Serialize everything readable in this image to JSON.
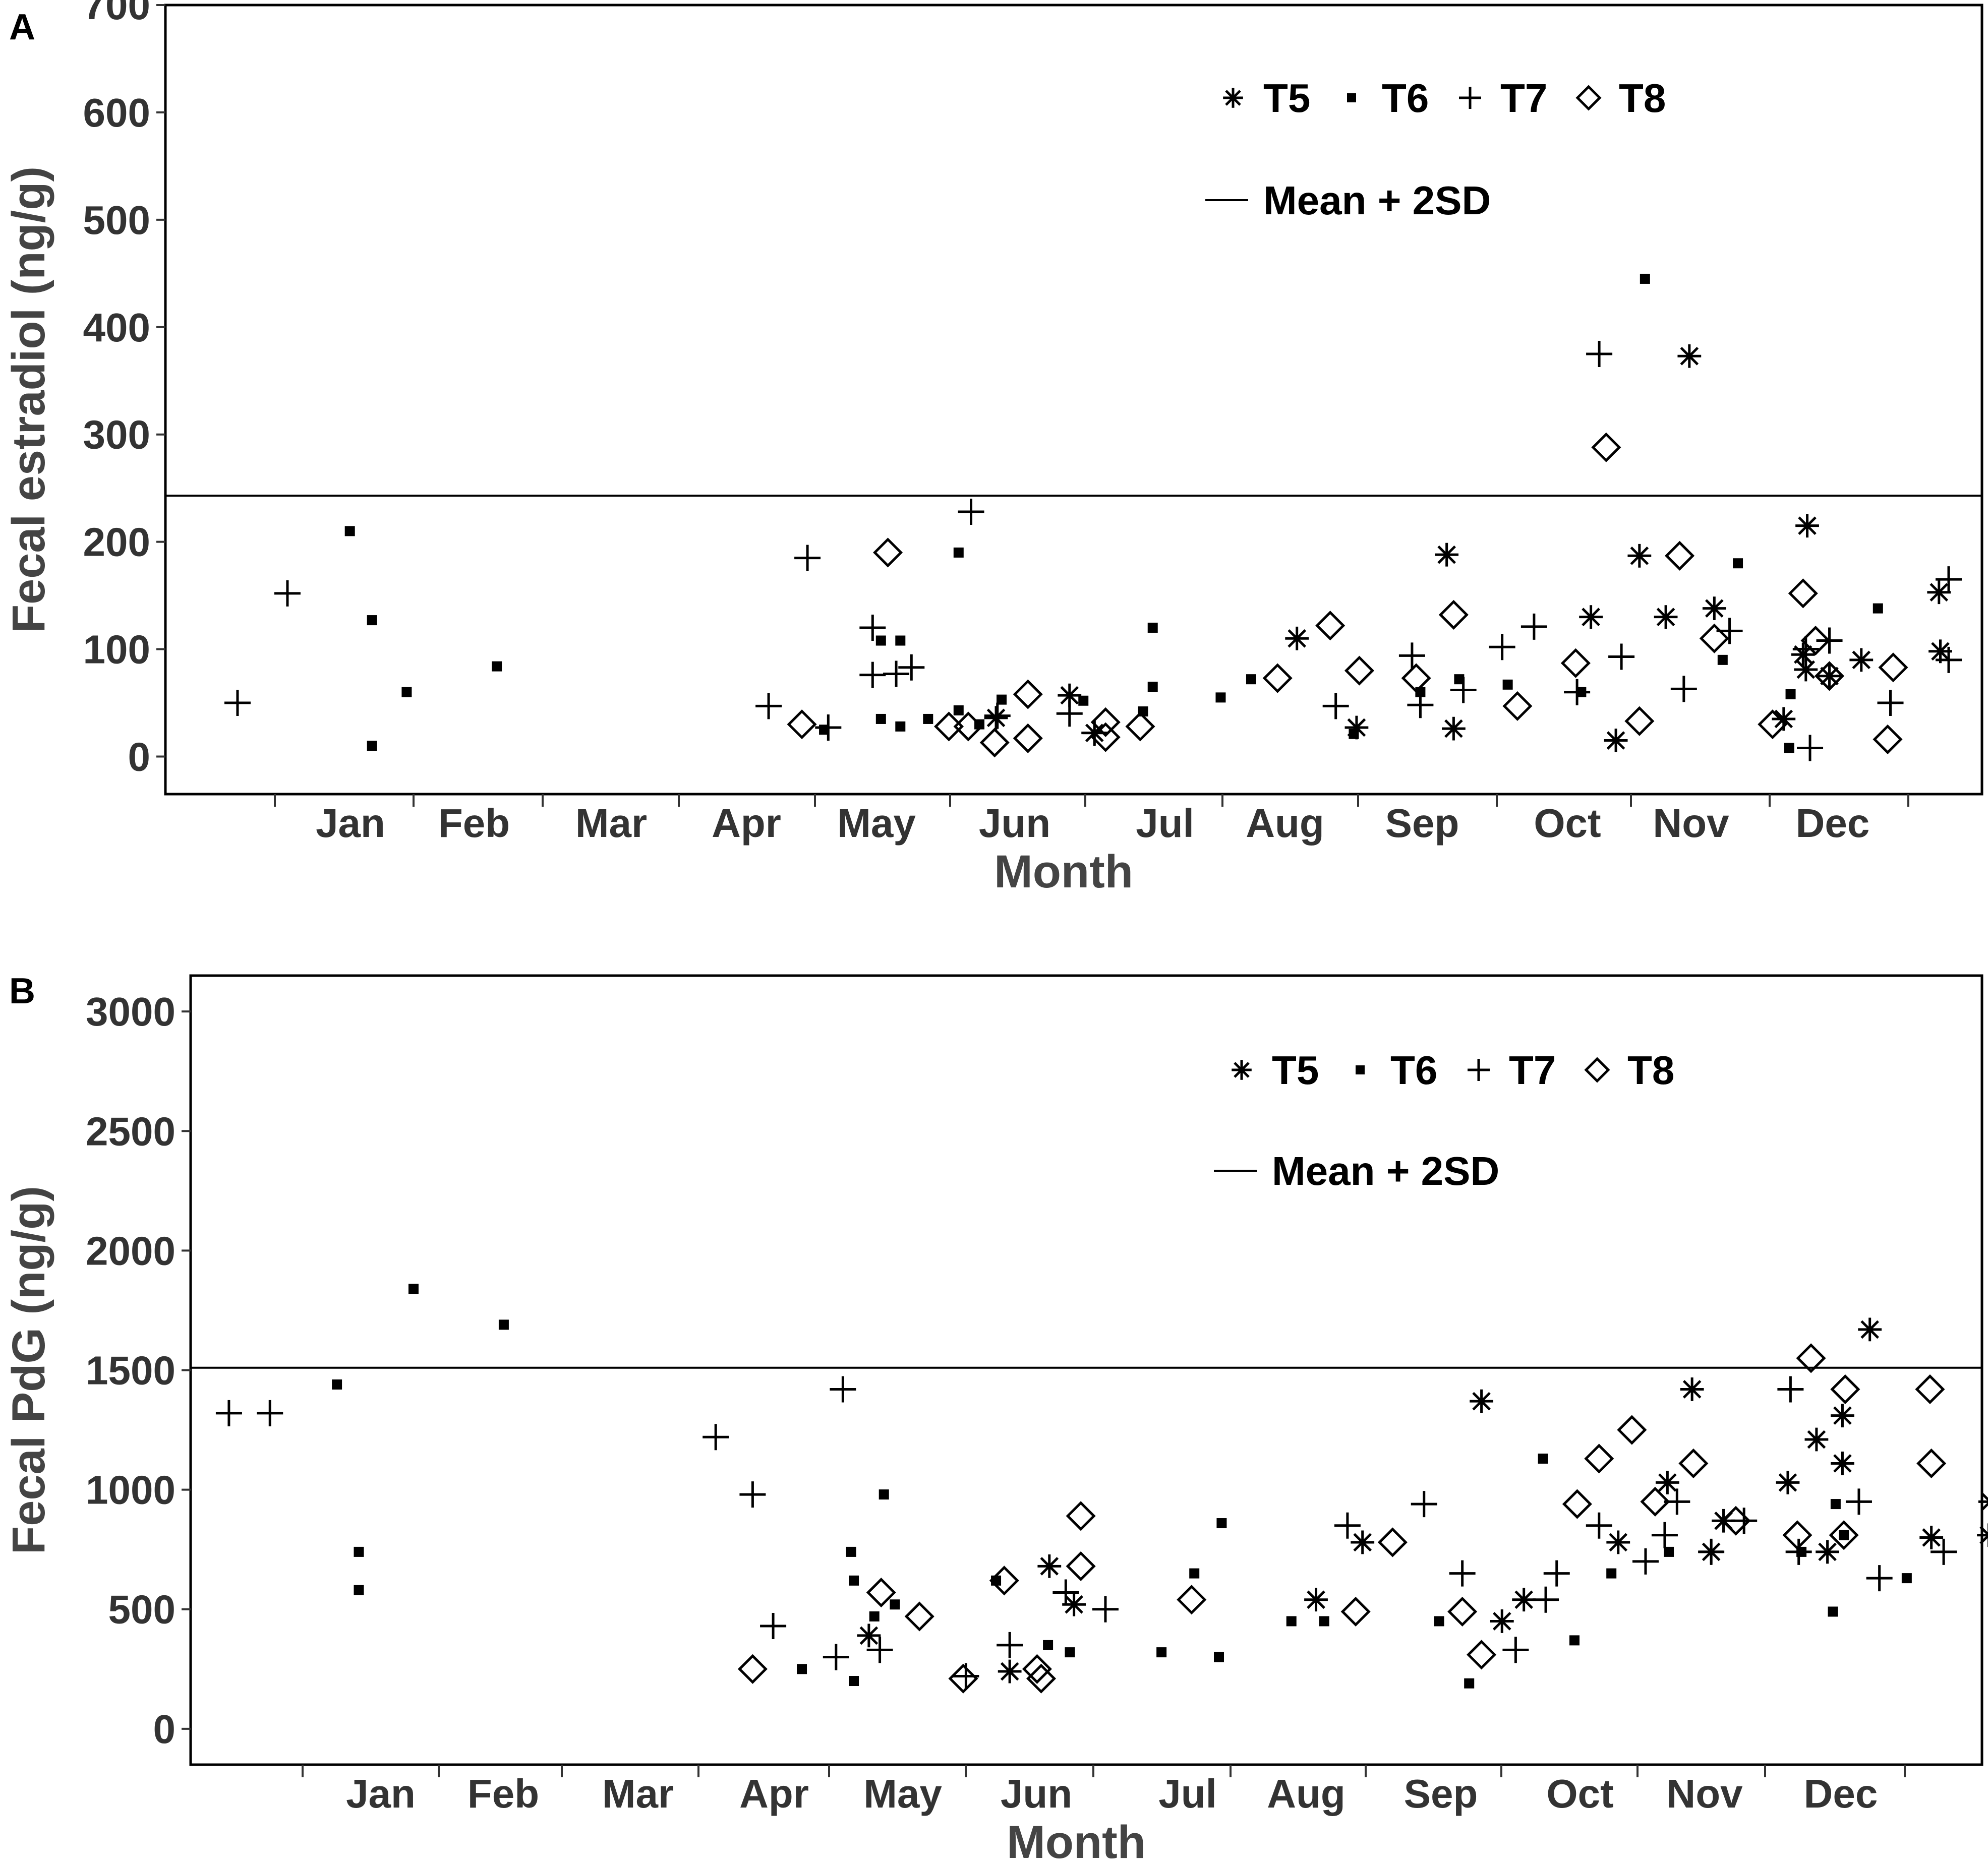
{
  "chart_data": [
    {
      "panel": "A",
      "type": "scatter",
      "ylabel": "Fecal estradiol (ng/g)",
      "xlabel": "Month",
      "ylim": [
        -35,
        700
      ],
      "yticks": [
        0,
        100,
        200,
        300,
        400,
        500,
        600,
        700
      ],
      "categories": [
        "Jan",
        "Feb",
        "Mar",
        "Apr",
        "May",
        "Jun",
        "Jul",
        "Aug",
        "Sep",
        "Oct",
        "Nov",
        "Dec"
      ],
      "xlim": [
        0.2,
        13.3
      ],
      "grid": false,
      "legend_position": "top-right",
      "legend": [
        "T5",
        "T6",
        "T7",
        "T8"
      ],
      "legend_line": "Mean + 2SD",
      "reference_line": 243,
      "series": [
        {
          "name": "T5",
          "marker": "asterisk",
          "points": [
            [
              6.19,
              36
            ],
            [
              6.72,
              57
            ],
            [
              6.9,
              22
            ],
            [
              8.36,
              110
            ],
            [
              8.79,
              27
            ],
            [
              9.44,
              188
            ],
            [
              9.49,
              26
            ],
            [
              10.48,
              130
            ],
            [
              10.66,
              15
            ],
            [
              10.83,
              187
            ],
            [
              11.02,
              130
            ],
            [
              11.19,
              373
            ],
            [
              11.37,
              138
            ],
            [
              11.87,
              35
            ],
            [
              12.01,
              95
            ],
            [
              12.03,
              81
            ],
            [
              12.04,
              215
            ],
            [
              12.2,
              75
            ],
            [
              12.43,
              90
            ],
            [
              12.99,
              153
            ],
            [
              13.0,
              98
            ]
          ]
        },
        {
          "name": "T6",
          "marker": "dot",
          "points": [
            [
              1.53,
              210
            ],
            [
              1.69,
              127
            ],
            [
              1.69,
              10
            ],
            [
              1.94,
              60
            ],
            [
              2.59,
              84
            ],
            [
              4.95,
              25
            ],
            [
              5.36,
              35
            ],
            [
              5.36,
              108
            ],
            [
              5.5,
              28
            ],
            [
              5.5,
              108
            ],
            [
              5.7,
              35
            ],
            [
              5.92,
              43
            ],
            [
              5.92,
              190
            ],
            [
              6.07,
              30
            ],
            [
              6.23,
              53
            ],
            [
              6.82,
              52
            ],
            [
              7.25,
              42
            ],
            [
              7.32,
              120
            ],
            [
              7.32,
              65
            ],
            [
              7.81,
              55
            ],
            [
              8.03,
              72
            ],
            [
              8.77,
              21
            ],
            [
              9.25,
              60
            ],
            [
              9.53,
              72
            ],
            [
              9.88,
              67
            ],
            [
              10.41,
              60
            ],
            [
              10.87,
              445
            ],
            [
              11.54,
              180
            ],
            [
              11.43,
              90
            ],
            [
              11.92,
              58
            ],
            [
              11.91,
              8
            ],
            [
              12.55,
              138
            ]
          ]
        },
        {
          "name": "T7",
          "marker": "plus",
          "points": [
            [
              0.72,
              50
            ],
            [
              1.08,
              152
            ],
            [
              4.55,
              47
            ],
            [
              4.83,
              185
            ],
            [
              4.98,
              27
            ],
            [
              5.3,
              120
            ],
            [
              5.3,
              76
            ],
            [
              5.47,
              77
            ],
            [
              5.58,
              83
            ],
            [
              6.01,
              228
            ],
            [
              6.2,
              38
            ],
            [
              6.72,
              40
            ],
            [
              6.9,
              22
            ],
            [
              8.64,
              47
            ],
            [
              9.19,
              94
            ],
            [
              9.25,
              48
            ],
            [
              9.56,
              62
            ],
            [
              9.84,
              102
            ],
            [
              10.07,
              121
            ],
            [
              10.38,
              60
            ],
            [
              10.54,
              375
            ],
            [
              10.7,
              93
            ],
            [
              11.15,
              63
            ],
            [
              11.48,
              117
            ],
            [
              12.03,
              100
            ],
            [
              12.06,
              8
            ],
            [
              12.2,
              108
            ],
            [
              12.64,
              50
            ],
            [
              13.06,
              165
            ],
            [
              13.06,
              90
            ]
          ]
        },
        {
          "name": "T8",
          "marker": "diamond",
          "points": [
            [
              4.79,
              30
            ],
            [
              5.41,
              190
            ],
            [
              5.85,
              28
            ],
            [
              5.99,
              28
            ],
            [
              6.18,
              13
            ],
            [
              6.42,
              58
            ],
            [
              6.42,
              17
            ],
            [
              6.98,
              32
            ],
            [
              6.98,
              18
            ],
            [
              7.23,
              28
            ],
            [
              8.22,
              73
            ],
            [
              8.6,
              122
            ],
            [
              8.81,
              80
            ],
            [
              9.22,
              73
            ],
            [
              9.49,
              132
            ],
            [
              9.95,
              47
            ],
            [
              10.37,
              87
            ],
            [
              10.59,
              288
            ],
            [
              10.83,
              33
            ],
            [
              11.12,
              187
            ],
            [
              11.37,
              110
            ],
            [
              11.79,
              30
            ],
            [
              12.01,
              152
            ],
            [
              12.1,
              108
            ],
            [
              12.2,
              75
            ],
            [
              12.62,
              16
            ],
            [
              12.66,
              83
            ]
          ]
        }
      ]
    },
    {
      "panel": "B",
      "type": "scatter",
      "ylabel": "Fecal PdG (ng/g)",
      "xlabel": "Month",
      "ylim": [
        -150,
        3150
      ],
      "yticks": [
        0,
        500,
        1000,
        1500,
        2000,
        2500,
        3000
      ],
      "categories": [
        "Jan",
        "Feb",
        "Mar",
        "Apr",
        "May",
        "Jun",
        "Jul",
        "Aug",
        "Sep",
        "Oct",
        "Nov",
        "Dec"
      ],
      "xlim": [
        0.2,
        13.3
      ],
      "grid": false,
      "legend_position": "top-right",
      "legend": [
        "T5",
        "T6",
        "T7",
        "T8"
      ],
      "legend_line": "Mean + 2SD",
      "reference_line": 1510,
      "series": [
        {
          "name": "T5",
          "marker": "asterisk",
          "points": [
            [
              5.16,
              390
            ],
            [
              6.19,
              240
            ],
            [
              6.48,
              680
            ],
            [
              6.66,
              520
            ],
            [
              8.43,
              540
            ],
            [
              8.77,
              780
            ],
            [
              9.64,
              1370
            ],
            [
              9.79,
              450
            ],
            [
              9.95,
              540
            ],
            [
              10.64,
              780
            ],
            [
              11.0,
              1030
            ],
            [
              11.18,
              1420
            ],
            [
              11.32,
              740
            ],
            [
              11.41,
              870
            ],
            [
              11.88,
              1030
            ],
            [
              12.09,
              1210
            ],
            [
              12.17,
              740
            ],
            [
              12.28,
              1310
            ],
            [
              12.28,
              1110
            ],
            [
              12.48,
              1670
            ],
            [
              12.93,
              800
            ],
            [
              13.36,
              950
            ],
            [
              13.35,
              810
            ]
          ]
        },
        {
          "name": "T6",
          "marker": "dot",
          "points": [
            [
              1.27,
              1440
            ],
            [
              1.83,
              1840
            ],
            [
              1.43,
              740
            ],
            [
              1.43,
              580
            ],
            [
              2.49,
              1690
            ],
            [
              4.67,
              250
            ],
            [
              5.05,
              200
            ],
            [
              5.03,
              740
            ],
            [
              5.05,
              620
            ],
            [
              5.27,
              980
            ],
            [
              5.2,
              470
            ],
            [
              5.35,
              520
            ],
            [
              6.09,
              620
            ],
            [
              6.47,
              350
            ],
            [
              6.63,
              320
            ],
            [
              7.3,
              320
            ],
            [
              7.54,
              650
            ],
            [
              7.74,
              860
            ],
            [
              7.72,
              300
            ],
            [
              8.25,
              450
            ],
            [
              8.49,
              450
            ],
            [
              9.33,
              450
            ],
            [
              9.55,
              190
            ],
            [
              10.09,
              1130
            ],
            [
              10.32,
              370
            ],
            [
              10.59,
              650
            ],
            [
              11.01,
              740
            ],
            [
              11.98,
              740
            ],
            [
              12.29,
              810
            ],
            [
              12.23,
              940
            ],
            [
              12.21,
              490
            ],
            [
              12.75,
              630
            ]
          ]
        },
        {
          "name": "T7",
          "marker": "plus",
          "points": [
            [
              0.48,
              1320
            ],
            [
              0.78,
              1320
            ],
            [
              4.04,
              1220
            ],
            [
              4.31,
              980
            ],
            [
              4.46,
              430
            ],
            [
              4.92,
              300
            ],
            [
              4.97,
              1420
            ],
            [
              5.24,
              330
            ],
            [
              5.87,
              220
            ],
            [
              6.19,
              350
            ],
            [
              6.6,
              570
            ],
            [
              6.89,
              500
            ],
            [
              8.66,
              850
            ],
            [
              9.22,
              940
            ],
            [
              9.5,
              650
            ],
            [
              9.89,
              330
            ],
            [
              10.11,
              540
            ],
            [
              10.19,
              650
            ],
            [
              10.5,
              850
            ],
            [
              10.84,
              700
            ],
            [
              10.98,
              810
            ],
            [
              11.07,
              950
            ],
            [
              11.32,
              740
            ],
            [
              11.56,
              870
            ],
            [
              11.9,
              1420
            ],
            [
              11.96,
              740
            ],
            [
              12.4,
              950
            ],
            [
              12.55,
              630
            ],
            [
              13.02,
              740
            ],
            [
              13.45,
              740
            ]
          ]
        },
        {
          "name": "T8",
          "marker": "diamond",
          "points": [
            [
              4.31,
              250
            ],
            [
              5.25,
              570
            ],
            [
              5.53,
              470
            ],
            [
              5.85,
              210
            ],
            [
              6.15,
              620
            ],
            [
              6.39,
              250
            ],
            [
              6.42,
              210
            ],
            [
              6.71,
              890
            ],
            [
              6.71,
              680
            ],
            [
              7.52,
              540
            ],
            [
              8.72,
              490
            ],
            [
              8.99,
              780
            ],
            [
              9.5,
              490
            ],
            [
              9.64,
              310
            ],
            [
              10.34,
              940
            ],
            [
              10.5,
              1130
            ],
            [
              10.74,
              1250
            ],
            [
              10.91,
              950
            ],
            [
              11.19,
              1110
            ],
            [
              11.5,
              870
            ],
            [
              11.95,
              810
            ],
            [
              12.05,
              1550
            ],
            [
              12.3,
              1420
            ],
            [
              12.29,
              810
            ],
            [
              12.92,
              1420
            ],
            [
              12.93,
              1110
            ]
          ]
        }
      ]
    }
  ]
}
